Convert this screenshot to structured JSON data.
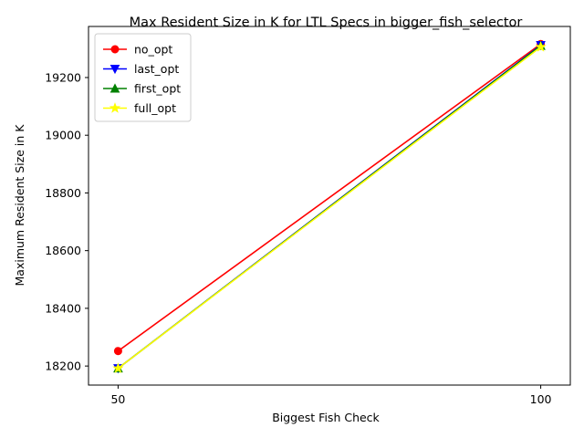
{
  "chart_data": {
    "type": "line",
    "title": "Max Resident Size in K for LTL Specs in bigger_fish_selector",
    "xlabel": "Biggest Fish Check",
    "ylabel": "Maximum Resident Size in K",
    "x": [
      50,
      100
    ],
    "x_ticks": [
      50,
      100
    ],
    "y_ticks": [
      18200,
      18400,
      18600,
      18800,
      19000,
      19200
    ],
    "xlim": [
      46.5,
      103.5
    ],
    "ylim": [
      18134,
      19377
    ],
    "grid": false,
    "legend_position": "top-left",
    "series": [
      {
        "name": "no_opt",
        "values": [
          18252,
          19316
        ],
        "color": "#ff0000",
        "marker": "circle"
      },
      {
        "name": "last_opt",
        "values": [
          18192,
          19312
        ],
        "color": "#0000ff",
        "marker": "triangle-down"
      },
      {
        "name": "first_opt",
        "values": [
          18192,
          19310
        ],
        "color": "#008000",
        "marker": "triangle-up"
      },
      {
        "name": "full_opt",
        "values": [
          18192,
          19306
        ],
        "color": "#ffff00",
        "marker": "star"
      }
    ]
  }
}
